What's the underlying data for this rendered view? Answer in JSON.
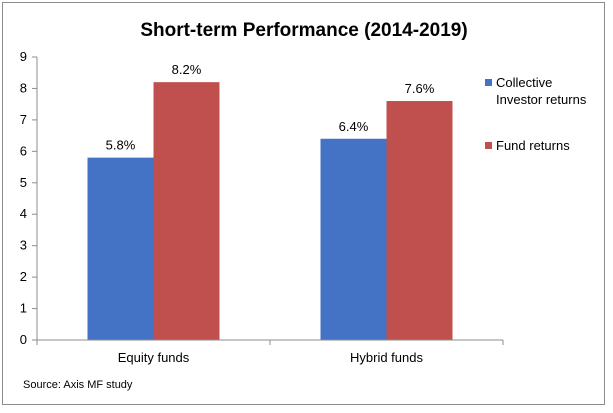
{
  "chart_data": {
    "type": "bar",
    "title": "Short-term Performance (2014-2019)",
    "categories": [
      "Equity funds",
      "Hybrid funds"
    ],
    "series": [
      {
        "name": "Collective Investor returns",
        "name_lines": [
          "Collective",
          "Investor returns"
        ],
        "values": [
          5.8,
          6.4
        ],
        "labels": [
          "5.8%",
          "6.4%"
        ],
        "color": "#4472c4"
      },
      {
        "name": "Fund returns",
        "name_lines": [
          "Fund returns"
        ],
        "values": [
          8.2,
          7.6
        ],
        "labels": [
          "8.2%",
          "7.6%"
        ],
        "color": "#c0504d"
      }
    ],
    "ylim": [
      0,
      9
    ],
    "yticks": [
      0,
      1,
      2,
      3,
      4,
      5,
      6,
      7,
      8,
      9
    ],
    "grid": false,
    "legend_position": "right",
    "source": "Source: Axis MF study"
  }
}
